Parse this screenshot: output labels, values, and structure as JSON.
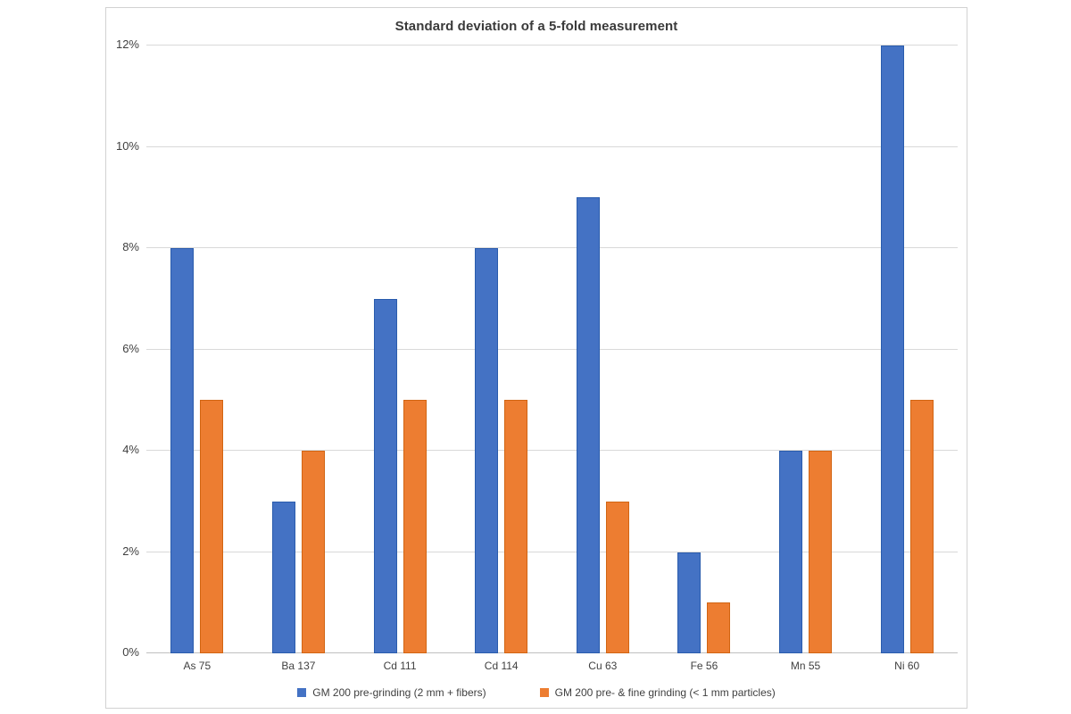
{
  "chart_data": {
    "type": "bar",
    "title": "Standard deviation of a 5-fold measurement",
    "categories": [
      "As 75",
      "Ba 137",
      "Cd 111",
      "Cd 114",
      "Cu 63",
      "Fe 56",
      "Mn 55",
      "Ni 60"
    ],
    "series": [
      {
        "name": "GM 200 pre-grinding (2 mm + fibers)",
        "values": [
          8,
          3,
          7,
          8,
          9,
          2,
          4,
          12
        ],
        "color": "#4472c4",
        "border_color": "#2a5cad"
      },
      {
        "name": "GM 200 pre- & fine grinding (< 1 mm particles)",
        "values": [
          5,
          4,
          5,
          5,
          3,
          1,
          4,
          5
        ],
        "color": "#ed7d31",
        "border_color": "#d26513"
      }
    ],
    "xlabel": "",
    "ylabel": "",
    "ylim": [
      0,
      12
    ],
    "ytick_step": 2,
    "ytick_labels": [
      "0%",
      "2%",
      "4%",
      "6%",
      "8%",
      "10%",
      "12%"
    ],
    "grid": true,
    "legend_position": "bottom",
    "colors": {
      "gridline": "#d9d9d9",
      "axis_line": "#c0c0c0",
      "text": "#404040",
      "frame_border": "#d2d2d2",
      "background": "#ffffff"
    }
  }
}
